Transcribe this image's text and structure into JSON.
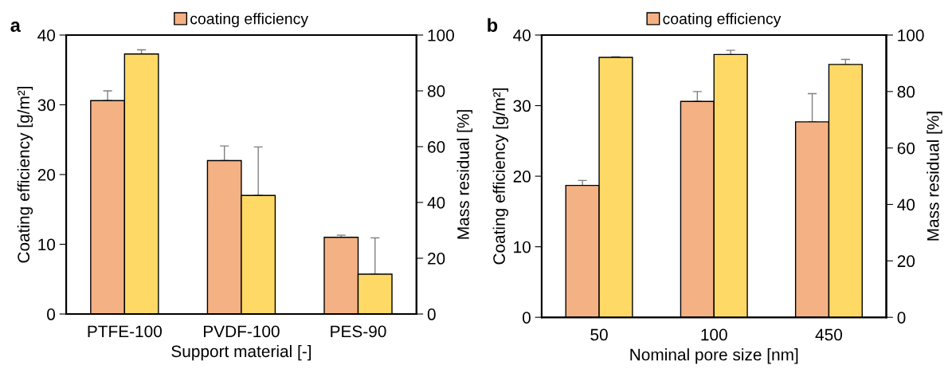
{
  "chart_data": [
    {
      "type": "bar",
      "title": "a",
      "xlabel": "Support material [-]",
      "ylabel": "Coating efficiency [g/m²]",
      "y2label": "Mass residual [%]",
      "categories": [
        "PTFE-100",
        "PVDF-100",
        "PES-90"
      ],
      "series": [
        {
          "name": "coating efficiency",
          "color": "#f4b183",
          "values": [
            30.6,
            22.0,
            11.0
          ],
          "errors": [
            [
              30.6,
              32.0
            ],
            [
              22.0,
              24.1
            ],
            [
              11.0,
              11.3
            ]
          ]
        },
        {
          "color": "#ffd966",
          "axis": "y2",
          "values": [
            93.2,
            42.5,
            14.3
          ],
          "errors": [
            [
              93.2,
              94.7
            ],
            [
              42.5,
              59.9
            ],
            [
              14.3,
              27.3
            ]
          ]
        }
      ],
      "ylim": [
        0,
        40
      ],
      "yticks": [
        0,
        10,
        20,
        30,
        40
      ],
      "y2lim": [
        0,
        100
      ],
      "y2ticks": [
        0,
        20,
        40,
        60,
        80,
        100
      ],
      "grid": false,
      "legend": "top"
    },
    {
      "type": "bar",
      "title": "b",
      "xlabel": "Nominal pore size [nm]",
      "ylabel": "Coating efficiency [g/m²]",
      "y2label": "Mass residual [%]",
      "categories": [
        "50",
        "100",
        "450"
      ],
      "series": [
        {
          "name": "coating efficiency",
          "color": "#f4b183",
          "values": [
            18.7,
            30.6,
            27.7
          ],
          "errors": [
            [
              18.7,
              19.4
            ],
            [
              30.6,
              32.0
            ],
            [
              27.7,
              31.7
            ]
          ]
        },
        {
          "color": "#ffd966",
          "axis": "y2",
          "values": [
            92.1,
            93.1,
            89.6
          ],
          "errors": [
            [
              92.1,
              92.3
            ],
            [
              93.1,
              94.6
            ],
            [
              89.6,
              91.4
            ]
          ]
        }
      ],
      "ylim": [
        0,
        40
      ],
      "yticks": [
        0,
        10,
        20,
        30,
        40
      ],
      "y2lim": [
        0,
        100
      ],
      "y2ticks": [
        0,
        20,
        40,
        60,
        80,
        100
      ],
      "grid": false,
      "legend": "top"
    }
  ]
}
